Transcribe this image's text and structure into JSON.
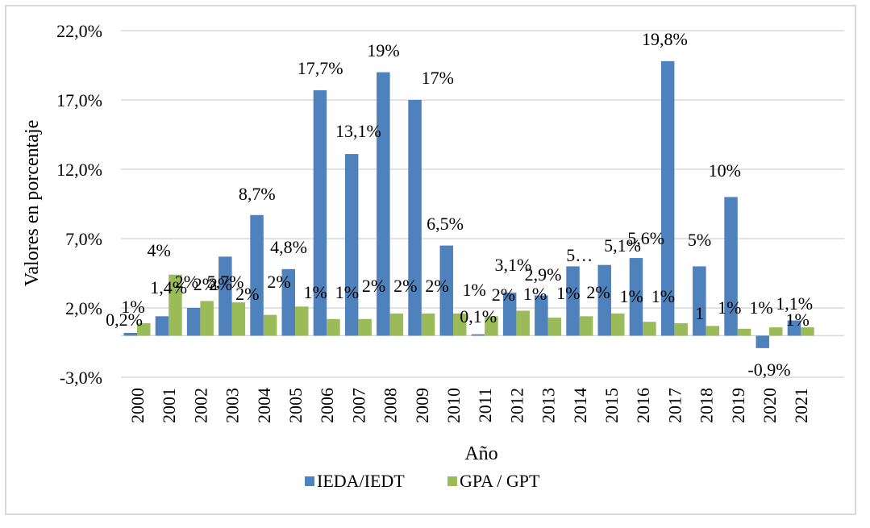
{
  "chart_data": {
    "type": "bar",
    "title": "",
    "xlabel": "Año",
    "ylabel": "Valores en porcentaje",
    "ylim": [
      -3.0,
      22.0
    ],
    "yticks": [
      -3.0,
      2.0,
      7.0,
      12.0,
      17.0,
      22.0
    ],
    "ytick_labels": [
      "-3,0%",
      "2,0%",
      "7,0%",
      "12,0%",
      "17,0%",
      "22,0%"
    ],
    "grid": true,
    "legend_position": "bottom",
    "categories": [
      "2000",
      "2001",
      "2002",
      "2003",
      "2004",
      "2005",
      "2006",
      "2007",
      "2008",
      "2009",
      "2010",
      "2011",
      "2012",
      "2013",
      "2014",
      "2015",
      "2016",
      "2017",
      "2018",
      "2019",
      "2020",
      "2021"
    ],
    "series": [
      {
        "name": "IEDA/IEDT",
        "color": "#4f81bd",
        "values": [
          0.2,
          1.4,
          2.0,
          5.7,
          8.7,
          4.8,
          17.7,
          13.1,
          19.0,
          17.0,
          6.5,
          0.1,
          3.1,
          2.9,
          5.0,
          5.1,
          5.6,
          19.8,
          5.0,
          10.0,
          -0.9,
          1.1
        ],
        "labels": [
          "0,2%",
          "1,4%",
          "2%",
          "5,7%",
          "8,7%",
          "4,8%",
          "17,7%",
          "13,1%",
          "19%",
          "17%",
          "6,5%",
          "0,1%",
          "3,1%",
          "2,9%",
          "5…",
          "5,1%",
          "5,6%",
          "19,8%",
          "5%",
          "10%",
          "-0,9%",
          "1,1%"
        ]
      },
      {
        "name": "GPA / GPT",
        "color": "#9bbb59",
        "values": [
          0.9,
          4.4,
          2.5,
          2.4,
          1.5,
          2.1,
          1.2,
          1.2,
          1.6,
          1.6,
          1.6,
          1.4,
          1.8,
          1.3,
          1.4,
          1.6,
          1.0,
          0.9,
          0.7,
          0.5,
          0.6,
          0.6
        ],
        "labels": [
          "1%",
          "4%",
          "2%",
          "2%",
          "2%",
          "2%",
          "1%",
          "1%",
          "2%",
          "2%",
          "2%",
          "1%",
          "2%",
          "1%",
          "1%",
          "2%",
          "1%",
          "1%",
          "1",
          "1%",
          "1%",
          "1%"
        ]
      }
    ]
  }
}
